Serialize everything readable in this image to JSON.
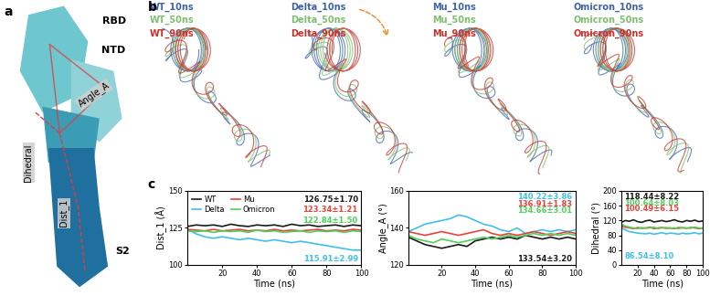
{
  "panel_a": {
    "label": "a",
    "texts": {
      "rbd": "RBD",
      "ntd": "NTD",
      "angle": "Angle_A",
      "dihedral": "Dihedral",
      "dist": "Dist_1",
      "s2": "S2"
    }
  },
  "panel_b": {
    "label": "b",
    "colors": [
      "#3f62ad",
      "#7dbf6e",
      "#c6322b"
    ],
    "structures": [
      [
        "WT_10ns",
        "WT_50ns",
        "WT_90ns"
      ],
      [
        "Delta_10ns",
        "Delta_50ns",
        "Delta_90ns"
      ],
      [
        "Mu_10ns",
        "Mu_50ns",
        "Mu_90ns"
      ],
      [
        "Omicron_10ns",
        "Omicron_50ns",
        "Omicron_90ns"
      ]
    ]
  },
  "panel_c": {
    "label": "c"
  },
  "chart_data": [
    {
      "type": "line",
      "xlabel": "Time (ns)",
      "ylabel": "Dist_1 (Å)",
      "x": [
        0,
        5,
        10,
        15,
        20,
        25,
        30,
        35,
        40,
        45,
        50,
        55,
        60,
        65,
        70,
        75,
        80,
        85,
        90,
        95,
        100
      ],
      "xlim": [
        0,
        100
      ],
      "xticks": [
        20,
        40,
        60,
        80,
        100
      ],
      "ylim": [
        100,
        150
      ],
      "yticks": [
        100,
        125,
        150
      ],
      "legend": "upper left",
      "series": [
        {
          "name": "WT",
          "color": "#1a1a1a",
          "values": [
            126,
            127,
            126.5,
            127,
            126,
            127.5,
            126.5,
            126,
            127,
            126.5,
            127,
            126,
            127.5,
            126.5,
            127,
            126,
            126.5,
            127,
            126,
            127,
            126.5
          ]
        },
        {
          "name": "Delta",
          "color": "#3fc0ea",
          "values": [
            124,
            121,
            119,
            118,
            119,
            118,
            117,
            118,
            117,
            116,
            117,
            116,
            115,
            116,
            115,
            114,
            113,
            112,
            111,
            110,
            110
          ]
        },
        {
          "name": "Mu",
          "color": "#e8423a",
          "values": [
            124,
            123.5,
            123,
            124,
            123,
            123.5,
            124,
            123,
            123.5,
            123,
            124,
            123,
            123.5,
            123,
            123.5,
            124,
            123,
            123.5,
            123,
            124,
            123.5
          ]
        },
        {
          "name": "Omicron",
          "color": "#4fd05a",
          "values": [
            123,
            122.5,
            123,
            122,
            123,
            122.5,
            123,
            122,
            123.5,
            122.5,
            123,
            122,
            122.5,
            123,
            122,
            123,
            122.5,
            123,
            122,
            123,
            122.5
          ]
        }
      ],
      "annotations": [
        {
          "text": "126.75±1.70",
          "series": "WT"
        },
        {
          "text": "123.34±1.21",
          "series": "Mu"
        },
        {
          "text": "122.84±1.50",
          "series": "Omicron"
        },
        {
          "text": "115.91±2.99",
          "series": "Delta"
        }
      ]
    },
    {
      "type": "line",
      "xlabel": "Time (ns)",
      "ylabel": "Angle_A (°)",
      "x": [
        0,
        5,
        10,
        15,
        20,
        25,
        30,
        35,
        40,
        45,
        50,
        55,
        60,
        65,
        70,
        75,
        80,
        85,
        90,
        95,
        100
      ],
      "xlim": [
        0,
        100
      ],
      "xticks": [
        20,
        40,
        60,
        80,
        100
      ],
      "ylim": [
        120,
        160
      ],
      "yticks": [
        120,
        140,
        160
      ],
      "series": [
        {
          "name": "WT",
          "color": "#1a1a1a",
          "values": [
            135,
            133,
            131,
            130,
            129,
            130,
            131,
            130,
            133,
            134,
            135,
            134,
            135,
            134,
            136,
            135,
            134,
            135,
            134,
            135,
            134
          ]
        },
        {
          "name": "Delta",
          "color": "#3fc0ea",
          "values": [
            138,
            140,
            142,
            143,
            144,
            145,
            147,
            146,
            144,
            142,
            141,
            139,
            138,
            140,
            137,
            138,
            139,
            138,
            139,
            138,
            139
          ]
        },
        {
          "name": "Mu",
          "color": "#e8423a",
          "values": [
            138,
            137,
            136,
            137,
            138,
            137,
            136,
            137,
            138,
            139,
            137,
            136,
            137,
            136,
            137,
            138,
            137,
            136,
            137,
            138,
            137
          ]
        },
        {
          "name": "Omicron",
          "color": "#4fd05a",
          "values": [
            136,
            134,
            133,
            132,
            134,
            133,
            132,
            133,
            134,
            135,
            134,
            135,
            136,
            135,
            136,
            137,
            136,
            137,
            136,
            137,
            136
          ]
        }
      ],
      "annotations": [
        {
          "text": "140.22±3.86",
          "series": "Delta"
        },
        {
          "text": "136.91±1.83",
          "series": "Mu"
        },
        {
          "text": "134.66±3.01",
          "series": "Omicron"
        },
        {
          "text": "133.54±3.20",
          "series": "WT"
        }
      ]
    },
    {
      "type": "line",
      "xlabel": "Time (ns)",
      "ylabel": "Dihedral (°)",
      "x": [
        0,
        5,
        10,
        15,
        20,
        25,
        30,
        35,
        40,
        45,
        50,
        55,
        60,
        65,
        70,
        75,
        80,
        85,
        90,
        95,
        100
      ],
      "xlim": [
        0,
        100
      ],
      "xticks": [
        20,
        40,
        60,
        80,
        100
      ],
      "ylim": [
        0,
        200
      ],
      "yticks": [
        0,
        40,
        80,
        120,
        160,
        200
      ],
      "series": [
        {
          "name": "WT",
          "color": "#1a1a1a",
          "values": [
            115,
            120,
            118,
            122,
            117,
            115,
            119,
            121,
            116,
            118,
            120,
            117,
            119,
            122,
            118,
            116,
            120,
            118,
            121,
            117,
            119
          ]
        },
        {
          "name": "Delta",
          "color": "#3fc0ea",
          "values": [
            100,
            95,
            90,
            88,
            86,
            85,
            84,
            86,
            83,
            85,
            87,
            84,
            86,
            85,
            83,
            86,
            84,
            85,
            87,
            84,
            86
          ]
        },
        {
          "name": "Mu",
          "color": "#e8423a",
          "values": [
            105,
            102,
            100,
            98,
            101,
            99,
            100,
            102,
            98,
            100,
            101,
            99,
            100,
            98,
            101,
            100,
            99,
            101,
            100,
            98,
            100
          ]
        },
        {
          "name": "Omicron",
          "color": "#4fd05a",
          "values": [
            110,
            105,
            102,
            100,
            98,
            101,
            99,
            100,
            102,
            98,
            100,
            101,
            99,
            100,
            98,
            101,
            100,
            99,
            102,
            100,
            98
          ]
        }
      ],
      "annotations": [
        {
          "text": "118.44±8.22",
          "series": "WT"
        },
        {
          "text": "100.64±8.03",
          "series": "Omicron"
        },
        {
          "text": "100.49±6.15",
          "series": "Mu"
        },
        {
          "text": "86.54±8.10",
          "series": "Delta"
        }
      ]
    }
  ]
}
